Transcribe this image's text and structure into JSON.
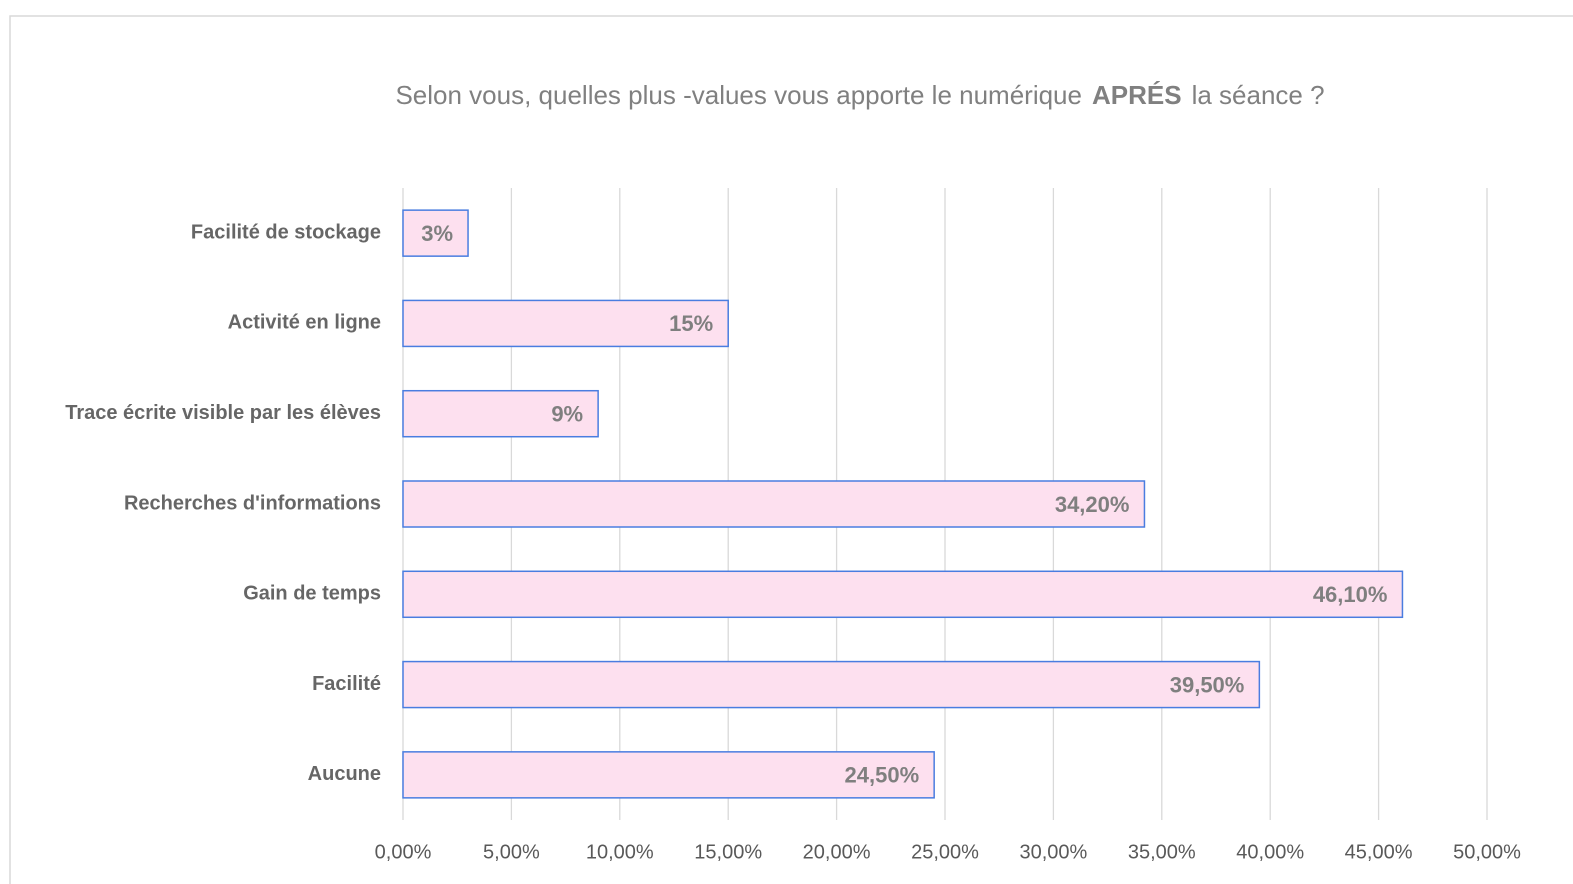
{
  "chart_data": {
    "type": "bar",
    "orientation": "horizontal",
    "title": [
      {
        "text": "Selon vous, quelles plus -values vous apporte le numérique",
        "bold": false
      },
      {
        "text": "APRÉS",
        "bold": true
      },
      {
        "text": "la séance ?",
        "bold": false
      }
    ],
    "categories": [
      "Facilité de stockage",
      "Activité en ligne",
      "Trace écrite visible par les élèves",
      "Recherches d'informations",
      "Gain de temps",
      "Facilité",
      "Aucune"
    ],
    "values": [
      3,
      15,
      9,
      34.2,
      46.1,
      39.5,
      24.5
    ],
    "value_labels": [
      "3%",
      "15%",
      "9%",
      "34,20%",
      "46,10%",
      "39,50%",
      "24,50%"
    ],
    "color": "#fde0ef",
    "edge_color": "#4a7de0",
    "xlim": [
      0,
      50
    ],
    "xticks": [
      {
        "value": 0,
        "label": "0,00%"
      },
      {
        "value": 5,
        "label": "5,00%"
      },
      {
        "value": 10,
        "label": "10,00%"
      },
      {
        "value": 15,
        "label": "15,00%"
      },
      {
        "value": 20,
        "label": "20,00%"
      },
      {
        "value": 25,
        "label": "25,00%"
      },
      {
        "value": 30,
        "label": "30,00%"
      },
      {
        "value": 35,
        "label": "35,00%"
      },
      {
        "value": 40,
        "label": "40,00%"
      },
      {
        "value": 45,
        "label": "45,00%"
      },
      {
        "value": 50,
        "label": "50,00%"
      }
    ],
    "grid": true
  }
}
